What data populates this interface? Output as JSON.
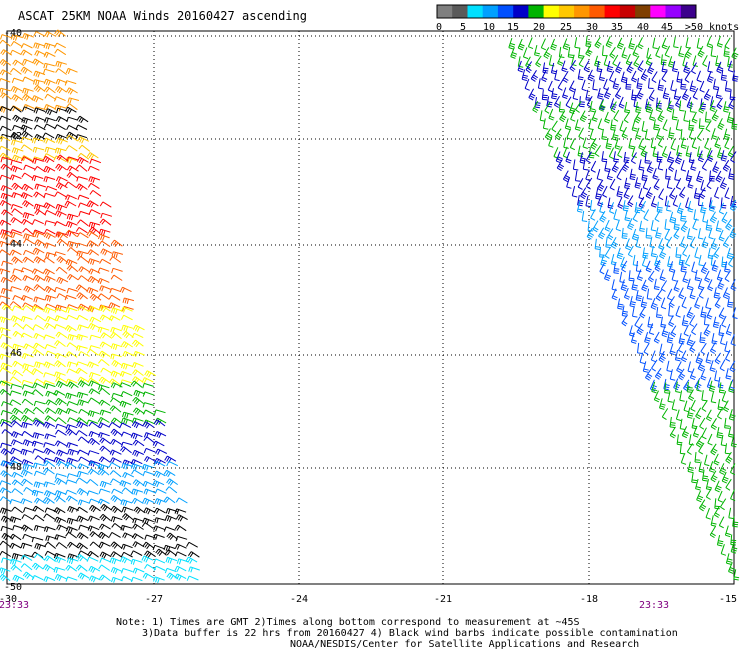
{
  "title": "ASCAT 25KM NOAA Winds 20160427 ascending",
  "legend": {
    "unit_label": ">50 knots",
    "ticks": [
      "0",
      "5",
      "10",
      "15",
      "20",
      "25",
      "30",
      "35",
      "40",
      "45",
      ">50 knots"
    ],
    "colors": [
      "#7f7f7f",
      "#5a5a5a",
      "#00e0ff",
      "#00a0ff",
      "#0050ff",
      "#0000c8",
      "#00b400",
      "#ffff00",
      "#ffc800",
      "#ff9600",
      "#ff5a00",
      "#ff0000",
      "#c80000",
      "#7f3f00",
      "#ff00ff",
      "#9600ff",
      "#3c008c"
    ]
  },
  "map": {
    "lat_labels": [
      "-40",
      "-42",
      "-44",
      "-46",
      "-48",
      "-50"
    ],
    "lon_labels": [
      "-30",
      "-27",
      "-24",
      "-21",
      "-18",
      "-15"
    ],
    "time_labels": [
      "23:33",
      "23:33"
    ],
    "lon_range": [
      -30,
      -15
    ],
    "lat_range": [
      -50,
      -40
    ]
  },
  "notes": {
    "line1": "Note: 1) Times are GMT 2)Times along bottom correspond to measurement at ~45S",
    "line2": "3)Data buffer is 22 hrs from 20160427 4) Black wind barbs indicate possible contamination",
    "line3": "NOAA/NESDIS/Center for Satellite Applications and Research"
  },
  "swaths": [
    {
      "name": "west-swath",
      "colors_top_to_bottom": [
        "#ff9600",
        "#ffc800",
        "#000000",
        "#ff5a00",
        "#ff0000",
        "#ffff00",
        "#00b400",
        "#0000c8",
        "#00a0ff",
        "#00e0ff",
        "#000000"
      ]
    },
    {
      "name": "east-swath",
      "colors_top_to_bottom": [
        "#00b400",
        "#0000c8",
        "#00b400",
        "#0000c8",
        "#00a0ff",
        "#0050ff",
        "#00b400"
      ]
    }
  ]
}
